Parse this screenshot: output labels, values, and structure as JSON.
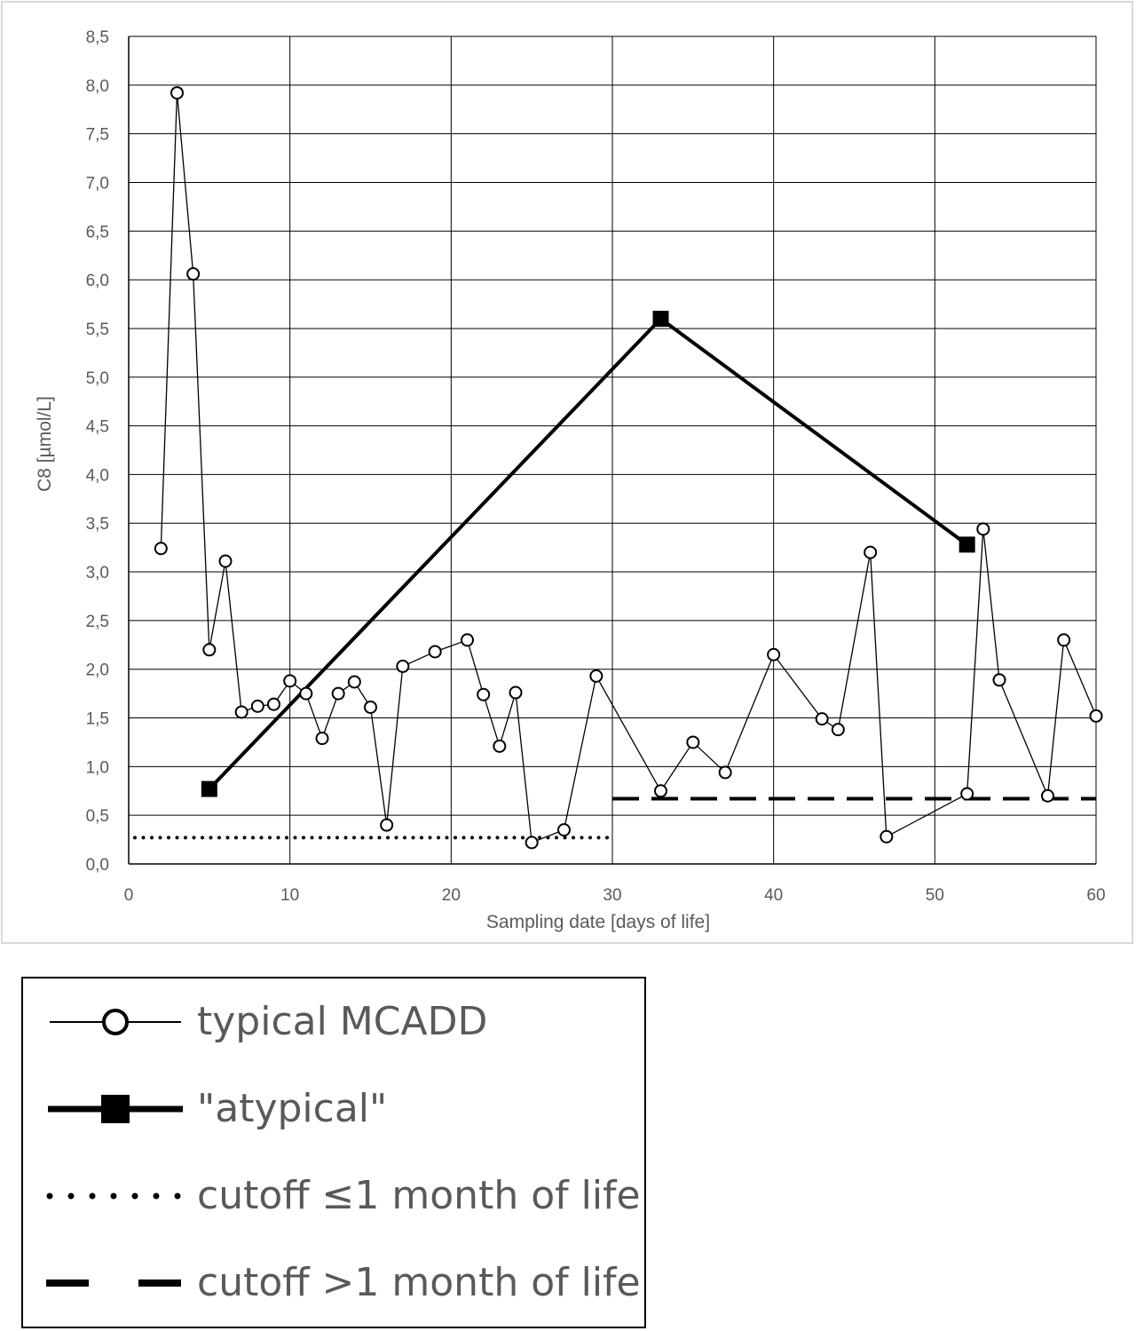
{
  "chart_data": {
    "type": "line",
    "xlabel": "Sampling date [days of life]",
    "ylabel": "C8 [µmol/L]",
    "xlim": [
      0,
      60
    ],
    "ylim": [
      0,
      8.5
    ],
    "x_ticks": [
      "0",
      "10",
      "20",
      "30",
      "40",
      "50",
      "60"
    ],
    "y_ticks": [
      "0,0",
      "0,5",
      "1,0",
      "1,5",
      "2,0",
      "2,5",
      "3,0",
      "3,5",
      "4,0",
      "4,5",
      "5,0",
      "5,5",
      "6,0",
      "6,5",
      "7,0",
      "7,5",
      "8,0",
      "8,5"
    ],
    "grid": true,
    "legend_position": "below",
    "series": [
      {
        "name": "typical MCADD",
        "style": "thin-line-open-circles",
        "x": [
          2,
          3,
          4,
          5,
          6,
          7,
          8,
          9,
          10,
          11,
          12,
          13,
          14,
          15,
          16,
          17,
          19,
          21,
          22,
          23,
          24,
          25,
          27,
          29,
          33,
          35,
          37,
          40,
          43,
          44,
          46,
          47,
          52,
          53,
          54,
          57,
          58,
          60
        ],
        "y": [
          3.24,
          7.92,
          6.06,
          2.2,
          3.11,
          1.56,
          1.62,
          1.64,
          1.88,
          1.75,
          1.29,
          1.75,
          1.87,
          1.61,
          0.4,
          2.03,
          2.18,
          2.3,
          1.74,
          1.21,
          1.76,
          0.22,
          0.35,
          1.93,
          0.75,
          1.25,
          0.94,
          2.15,
          1.49,
          1.38,
          3.2,
          0.28,
          0.72,
          3.44,
          1.89,
          0.7,
          2.3,
          1.52
        ]
      },
      {
        "name": "\"atypical\"",
        "style": "thick-line-filled-squares",
        "x": [
          5,
          33,
          52
        ],
        "y": [
          0.77,
          5.6,
          3.28
        ]
      },
      {
        "name": "cutoff ≤1 month of life",
        "style": "dotted",
        "x": [
          0,
          30
        ],
        "y": [
          0.27,
          0.27
        ]
      },
      {
        "name": "cutoff >1 month of life",
        "style": "dashed",
        "x": [
          30,
          60
        ],
        "y": [
          0.67,
          0.67
        ]
      }
    ]
  },
  "legend": {
    "items": [
      {
        "key": "typical",
        "label": "typical MCADD"
      },
      {
        "key": "atypical",
        "label": "\"atypical\""
      },
      {
        "key": "cutoff1",
        "label": "cutoff ≤1 month of life"
      },
      {
        "key": "cutoff2",
        "label": "cutoff >1 month of life"
      }
    ]
  }
}
